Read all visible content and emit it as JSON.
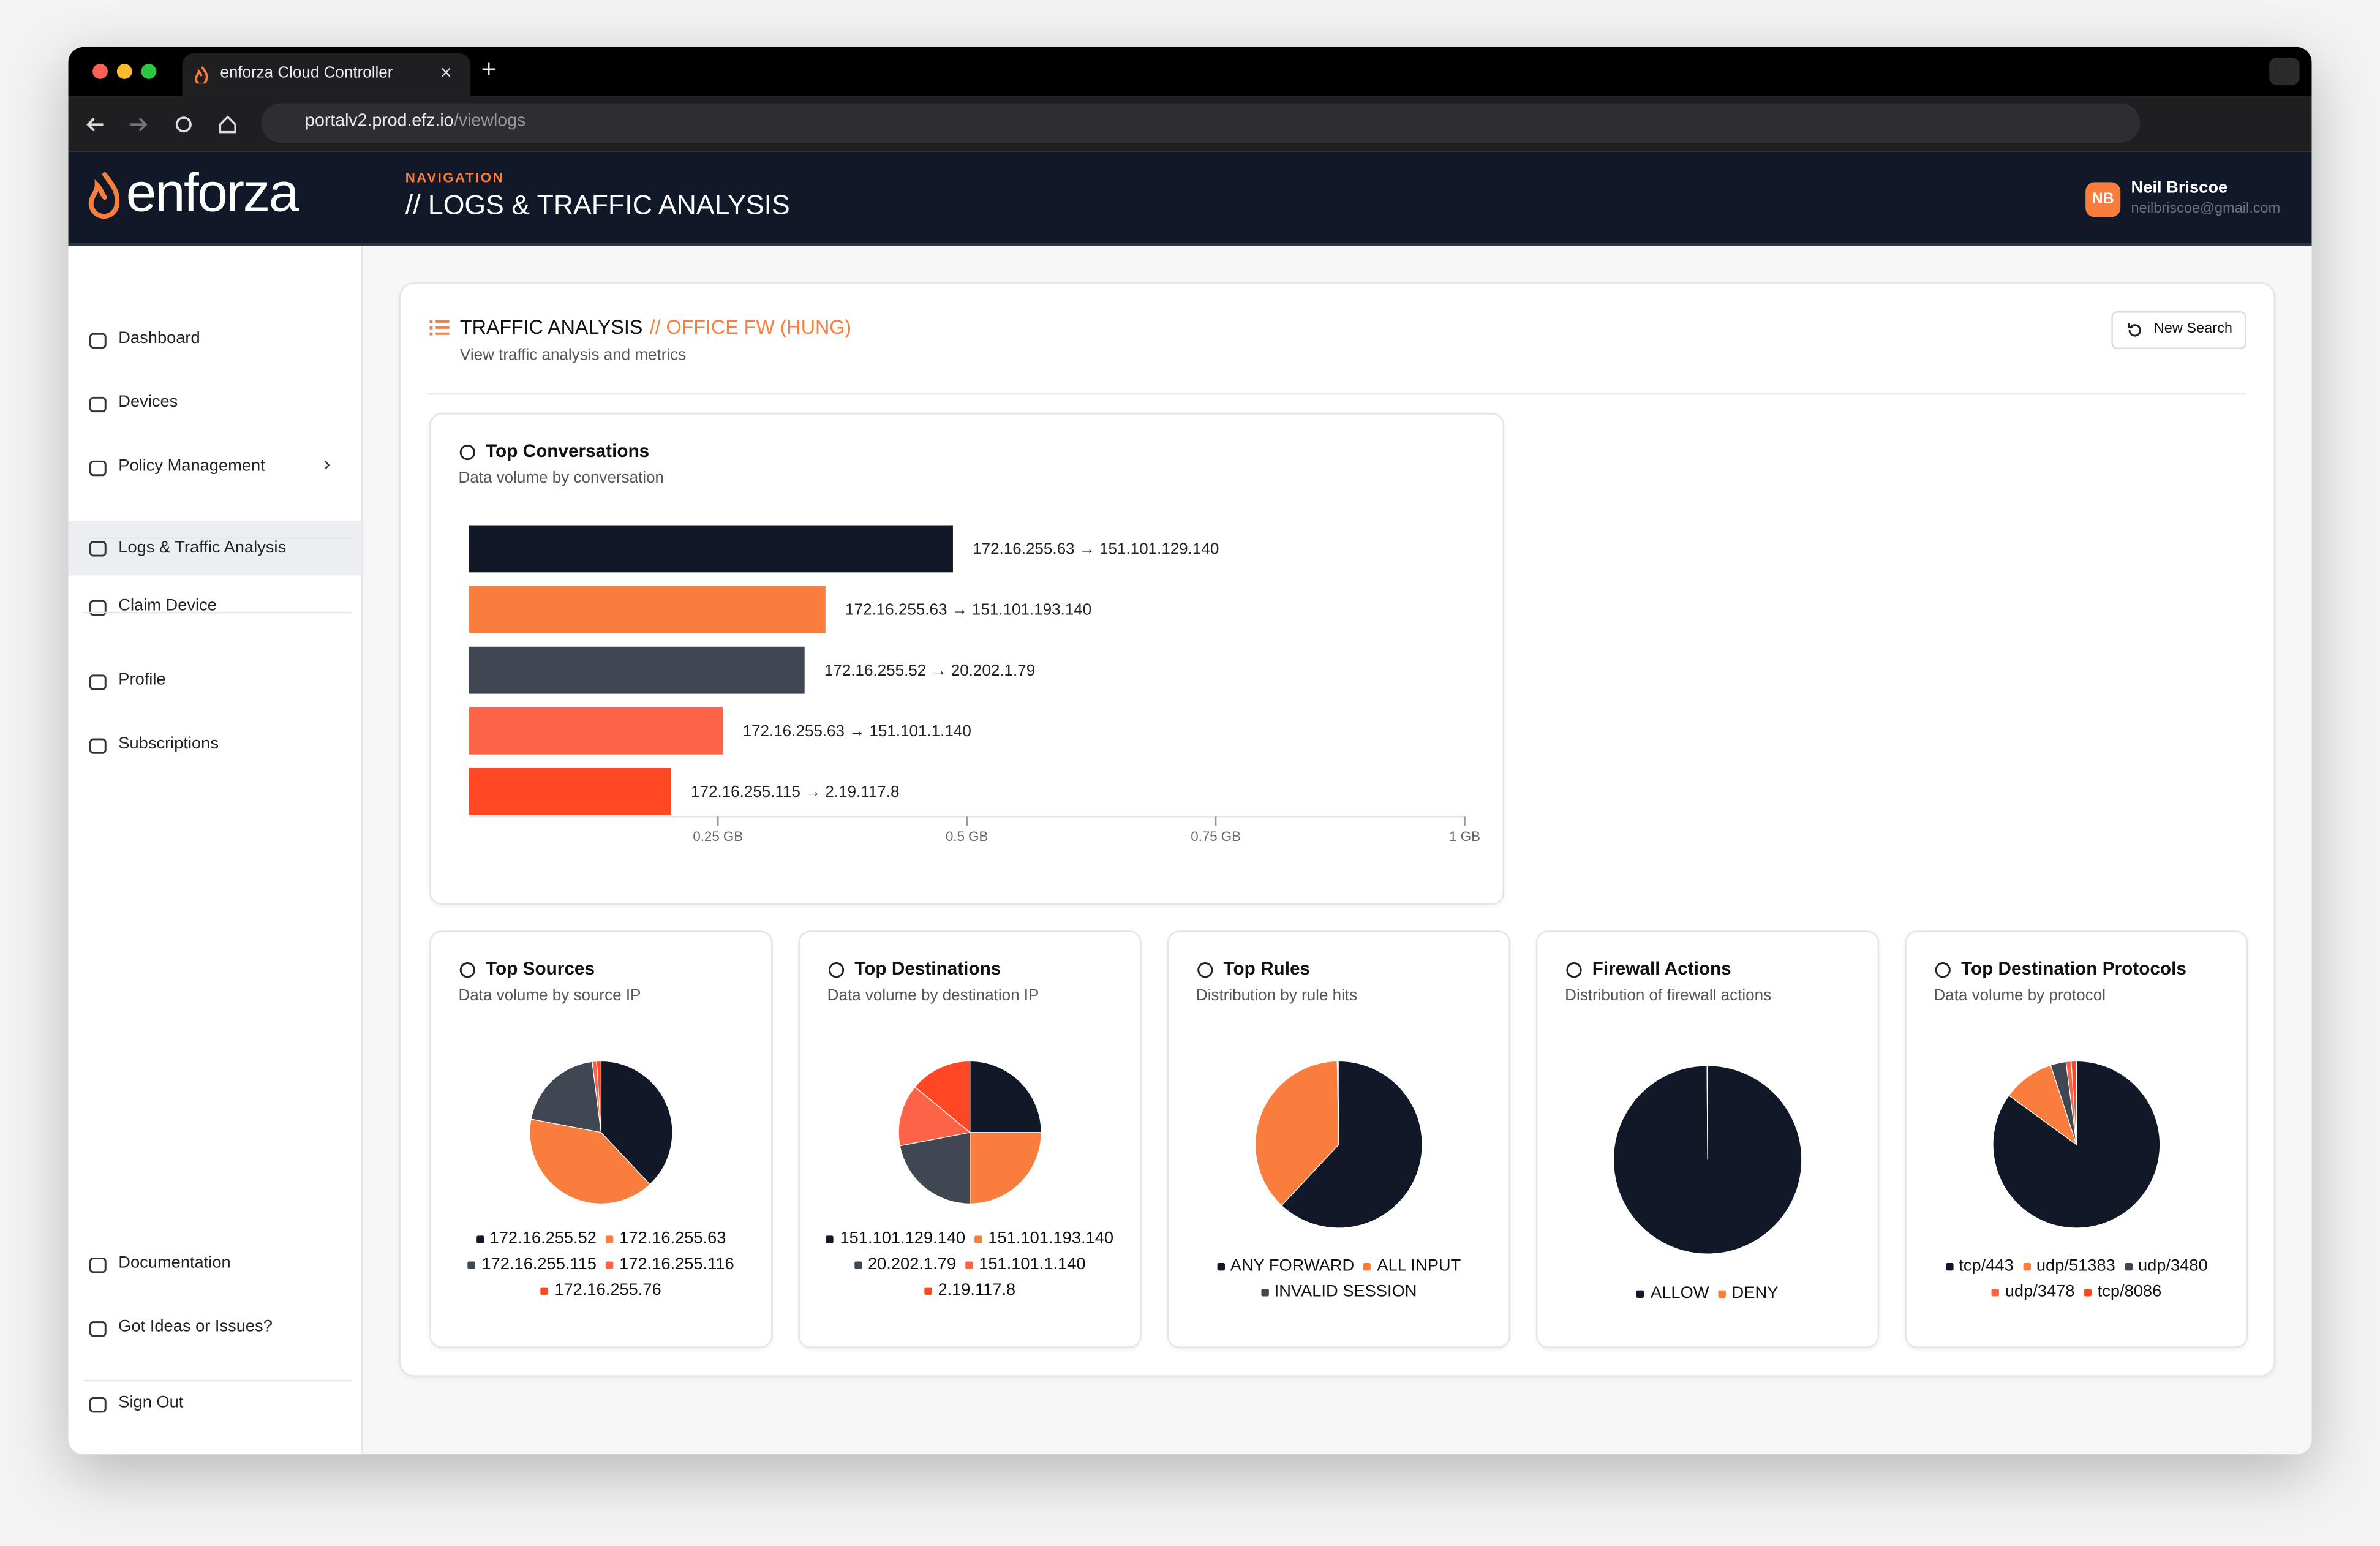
{
  "browser": {
    "tab_title": "enforza Cloud Controller",
    "url_host": "portalv2.prod.efz.io",
    "url_path": "/viewlogs"
  },
  "header": {
    "logo": "enforza",
    "nav_label": "NAVIGATION",
    "page_title": "// LOGS & TRAFFIC ANALYSIS",
    "user_initials": "NB",
    "user_name": "Neil Briscoe",
    "user_email": "neilbriscoe@gmail.com"
  },
  "sidebar": {
    "items": [
      "Dashboard",
      "Devices",
      "Policy Management",
      "Logs & Traffic Analysis",
      "Claim Device",
      "Profile",
      "Subscriptions"
    ],
    "footer_items": [
      "Documentation",
      "Got Ideas or Issues?",
      "Sign Out"
    ]
  },
  "panel": {
    "title": "TRAFFIC ANALYSIS",
    "title_highlight": "// OFFICE FW (HUNG)",
    "description": "View traffic analysis and metrics",
    "button": "New Search"
  },
  "chart_data": [
    {
      "type": "bar",
      "orientation": "horizontal",
      "title": "Top Conversations",
      "subtitle": "Data volume by conversation",
      "categories": [
        "172.16.255.63 → 151.101.129.140",
        "172.16.255.63 → 151.101.193.140",
        "172.16.255.52 → 20.202.1.79",
        "172.16.255.63 → 151.101.1.140",
        "172.16.255.115 → 2.19.117.8"
      ],
      "values": [
        0.486,
        0.358,
        0.337,
        0.255,
        0.203
      ],
      "colors": [
        "#111827",
        "#f97d3c",
        "#3f4753",
        "#fd6447",
        "#ff4724"
      ],
      "xlim": [
        0,
        1
      ],
      "xticks": [
        {
          "value": 0.25,
          "label": "0.25 GB"
        },
        {
          "value": 0.5,
          "label": "0.5 GB"
        },
        {
          "value": 0.75,
          "label": "0.75 GB"
        },
        {
          "value": 1,
          "label": "1 GB"
        }
      ]
    },
    {
      "type": "pie",
      "title": "Top Sources",
      "subtitle": "Data volume by source IP",
      "categories": [
        "172.16.255.52",
        "172.16.255.63",
        "172.16.255.115",
        "172.16.255.116",
        "172.16.255.76"
      ],
      "values": [
        38,
        40,
        20,
        1,
        1
      ],
      "colors": [
        "#111827",
        "#f97d3c",
        "#3f4753",
        "#fd6447",
        "#ff4724"
      ]
    },
    {
      "type": "pie",
      "title": "Top Destinations",
      "subtitle": "Data volume by destination IP",
      "categories": [
        "151.101.129.140",
        "151.101.193.140",
        "20.202.1.79",
        "151.101.1.140",
        "2.19.117.8"
      ],
      "values": [
        25,
        25,
        22,
        14,
        14
      ],
      "colors": [
        "#111827",
        "#f97d3c",
        "#3f4753",
        "#fd6447",
        "#ff4724"
      ]
    },
    {
      "type": "pie",
      "title": "Top Rules",
      "subtitle": "Distribution by rule hits",
      "categories": [
        "ANY FORWARD",
        "ALL INPUT",
        "INVALID SESSION"
      ],
      "values": [
        62,
        37.7,
        0.3
      ],
      "colors": [
        "#111827",
        "#f97d3c",
        "#3f4753"
      ]
    },
    {
      "type": "pie",
      "title": "Firewall Actions",
      "subtitle": "Distribution of firewall actions",
      "categories": [
        "ALLOW",
        "DENY"
      ],
      "values": [
        99.9,
        0.1
      ],
      "colors": [
        "#111827",
        "#f97d3c"
      ]
    },
    {
      "type": "pie",
      "title": "Top Destination Protocols",
      "subtitle": "Data volume by protocol",
      "categories": [
        "tcp/443",
        "udp/51383",
        "udp/3480",
        "udp/3478",
        "tcp/8086"
      ],
      "values": [
        85,
        10,
        3,
        1,
        1
      ],
      "colors": [
        "#111827",
        "#f97d3c",
        "#3f4753",
        "#fd6447",
        "#ff4724"
      ]
    }
  ]
}
